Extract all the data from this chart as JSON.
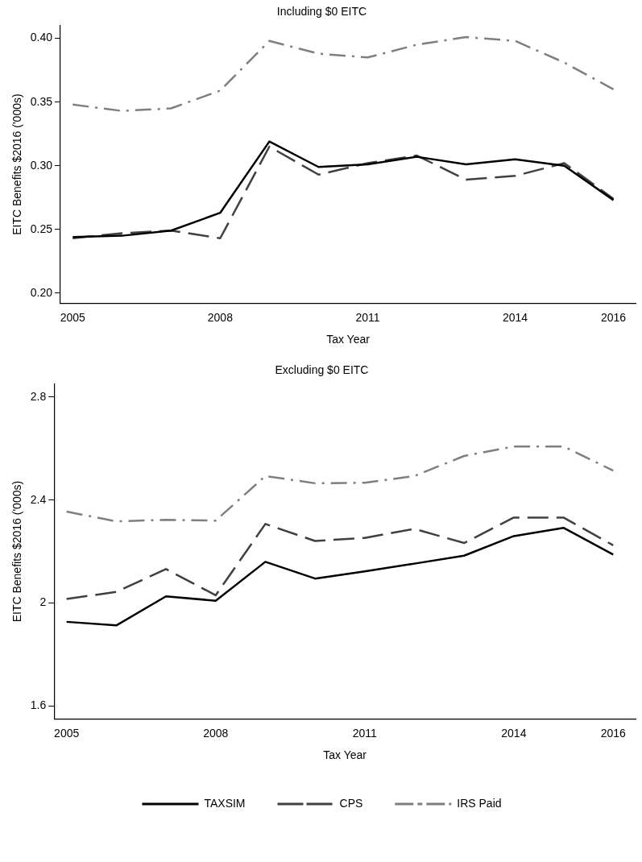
{
  "chart_data": [
    {
      "type": "line",
      "title": "Including $0 EITC",
      "xlabel": "Tax Year",
      "ylabel": "EITC Benefits $2016 ('000s)",
      "x": [
        2005,
        2006,
        2007,
        2008,
        2009,
        2010,
        2011,
        2012,
        2013,
        2014,
        2015,
        2016
      ],
      "xlim": [
        2004.75,
        2016.45
      ],
      "xticks": [
        2005,
        2008,
        2011,
        2014,
        2016
      ],
      "ylim": [
        0.192,
        0.41
      ],
      "yticks": [
        {
          "value": 0.2,
          "label": "0.20"
        },
        {
          "value": 0.25,
          "label": "0.25"
        },
        {
          "value": 0.3,
          "label": "0.30"
        },
        {
          "value": 0.35,
          "label": "0.35"
        },
        {
          "value": 0.4,
          "label": "0.40"
        }
      ],
      "grid": false,
      "legend": false,
      "marker": "none",
      "series": [
        {
          "color": "#000000",
          "line_style": "solid",
          "values": [
            0.244,
            0.245,
            0.249,
            0.263,
            0.319,
            0.299,
            0.301,
            0.307,
            0.301,
            0.305,
            0.3,
            0.273
          ]
        },
        {
          "color": "#404040",
          "line_style": "dashed",
          "values": [
            0.243,
            0.247,
            0.249,
            0.243,
            0.315,
            0.293,
            0.302,
            0.308,
            0.289,
            0.292,
            0.302,
            0.274
          ]
        },
        {
          "color": "#7f7f7f",
          "line_style": "dashdot",
          "values": [
            0.348,
            0.343,
            0.345,
            0.359,
            0.398,
            0.388,
            0.385,
            0.395,
            0.401,
            0.398,
            0.381,
            0.36
          ]
        }
      ]
    },
    {
      "type": "line",
      "title": "Excluding $0 EITC",
      "xlabel": "Tax Year",
      "ylabel": "EITC Benefits $2016 ('000s)",
      "x": [
        2005,
        2006,
        2007,
        2008,
        2009,
        2010,
        2011,
        2012,
        2013,
        2014,
        2015,
        2016
      ],
      "xlim": [
        2004.75,
        2016.45
      ],
      "xticks": [
        2005,
        2008,
        2011,
        2014,
        2016
      ],
      "ylim": [
        1.55,
        2.85
      ],
      "yticks": [
        1.6,
        2,
        2.4,
        2.8
      ],
      "grid": false,
      "legend": "bottom",
      "marker": "none",
      "series": [
        {
          "name": "TAXSIM",
          "color": "#000000",
          "line_style": "solid",
          "values": [
            1.927,
            1.913,
            2.026,
            2.009,
            2.16,
            2.095,
            2.123,
            2.153,
            2.184,
            2.26,
            2.292,
            2.188
          ]
        },
        {
          "name": "CPS",
          "color": "#404040",
          "line_style": "dashed",
          "values": [
            2.016,
            2.043,
            2.132,
            2.03,
            2.307,
            2.241,
            2.253,
            2.288,
            2.233,
            2.332,
            2.332,
            2.224
          ]
        },
        {
          "name": "IRS Paid",
          "color": "#7f7f7f",
          "line_style": "dashdot",
          "values": [
            2.355,
            2.317,
            2.323,
            2.32,
            2.493,
            2.465,
            2.467,
            2.493,
            2.571,
            2.608,
            2.608,
            2.514
          ]
        }
      ]
    }
  ]
}
